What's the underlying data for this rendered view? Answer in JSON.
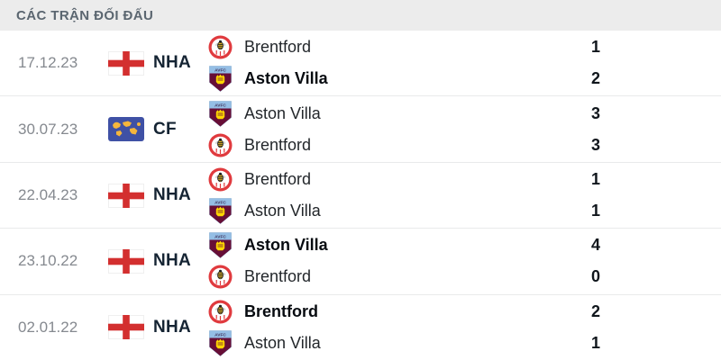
{
  "header": {
    "title": "CÁC TRẬN ĐỐI ĐẤU"
  },
  "colors": {
    "header_bg": "#ececec",
    "header_text": "#5b6670",
    "date_text": "#85898f",
    "competition_text": "#152433",
    "team_text": "#23272b",
    "winner_text": "#070b10",
    "score_text": "#10161c",
    "divider": "#e9eaeb",
    "england_red": "#d32f2f",
    "cf_flag_blue": "#3f51a5",
    "cf_map_yellow": "#f5b63c",
    "brentford_red": "#e03a3e",
    "brentford_bee_yellow": "#f2c21f",
    "villa_claret": "#670e36",
    "villa_blue": "#94bee5",
    "villa_yellow": "#ffd700"
  },
  "matches": [
    {
      "date": "17.12.23",
      "competition": {
        "code": "NHA",
        "flag": "england"
      },
      "teams": [
        {
          "name": "Brentford",
          "logo": "brentford",
          "score": "1",
          "winner": false
        },
        {
          "name": "Aston Villa",
          "logo": "aston-villa",
          "score": "2",
          "winner": true
        }
      ]
    },
    {
      "date": "30.07.23",
      "competition": {
        "code": "CF",
        "flag": "world"
      },
      "teams": [
        {
          "name": "Aston Villa",
          "logo": "aston-villa",
          "score": "3",
          "winner": false
        },
        {
          "name": "Brentford",
          "logo": "brentford",
          "score": "3",
          "winner": false
        }
      ]
    },
    {
      "date": "22.04.23",
      "competition": {
        "code": "NHA",
        "flag": "england"
      },
      "teams": [
        {
          "name": "Brentford",
          "logo": "brentford",
          "score": "1",
          "winner": false
        },
        {
          "name": "Aston Villa",
          "logo": "aston-villa",
          "score": "1",
          "winner": false
        }
      ]
    },
    {
      "date": "23.10.22",
      "competition": {
        "code": "NHA",
        "flag": "england"
      },
      "teams": [
        {
          "name": "Aston Villa",
          "logo": "aston-villa",
          "score": "4",
          "winner": true
        },
        {
          "name": "Brentford",
          "logo": "brentford",
          "score": "0",
          "winner": false
        }
      ]
    },
    {
      "date": "02.01.22",
      "competition": {
        "code": "NHA",
        "flag": "england"
      },
      "teams": [
        {
          "name": "Brentford",
          "logo": "brentford",
          "score": "2",
          "winner": true
        },
        {
          "name": "Aston Villa",
          "logo": "aston-villa",
          "score": "1",
          "winner": false
        }
      ]
    }
  ]
}
